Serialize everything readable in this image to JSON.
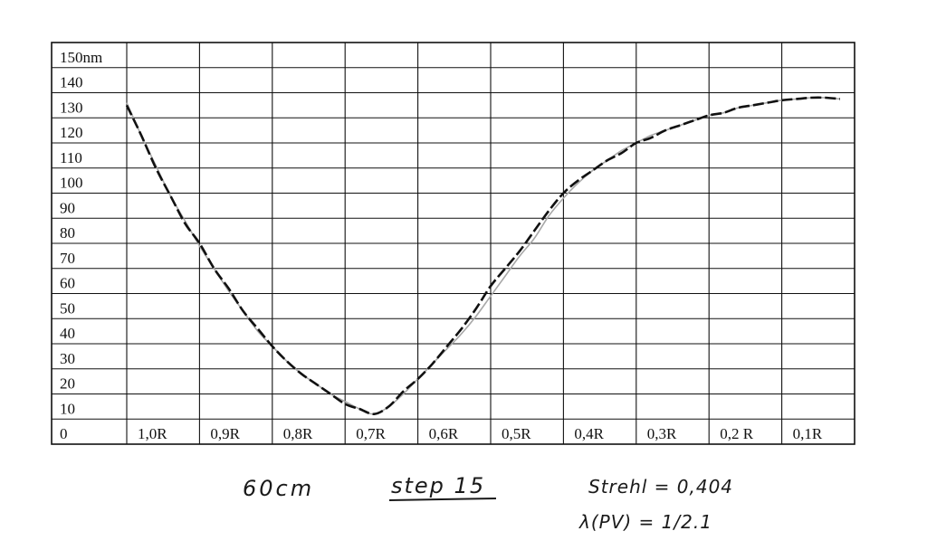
{
  "chart_data": {
    "type": "line",
    "title": "",
    "xlabel": "",
    "ylabel": "",
    "y_unit": "nm",
    "ylim": [
      0,
      150
    ],
    "yticks": [
      "150nm",
      "140",
      "130",
      "120",
      "110",
      "100",
      "90",
      "80",
      "70",
      "60",
      "50",
      "40",
      "30",
      "20",
      "10",
      "0"
    ],
    "xticks": [
      "1,0R",
      "0,9R",
      "0,8R",
      "0,7R",
      "0,6R",
      "0,5R",
      "0,4R",
      "0,3R",
      "0,2 R",
      "0,1R"
    ],
    "x_order": "descending",
    "xlim": [
      1.0,
      0.0
    ],
    "grid": true,
    "series": [
      {
        "style": "dashed",
        "color": "#111111",
        "points": [
          [
            1.0,
            125
          ],
          [
            0.98,
            113
          ],
          [
            0.96,
            100
          ],
          [
            0.94,
            89
          ],
          [
            0.92,
            78
          ],
          [
            0.9,
            70
          ],
          [
            0.88,
            60
          ],
          [
            0.86,
            52
          ],
          [
            0.84,
            43
          ],
          [
            0.82,
            36
          ],
          [
            0.8,
            29
          ],
          [
            0.78,
            23
          ],
          [
            0.76,
            18
          ],
          [
            0.74,
            14
          ],
          [
            0.72,
            10
          ],
          [
            0.7,
            6
          ],
          [
            0.68,
            4
          ],
          [
            0.66,
            2
          ],
          [
            0.64,
            5
          ],
          [
            0.62,
            11
          ],
          [
            0.6,
            16
          ],
          [
            0.58,
            22
          ],
          [
            0.56,
            29
          ],
          [
            0.54,
            36
          ],
          [
            0.52,
            44
          ],
          [
            0.5,
            53
          ],
          [
            0.48,
            60
          ],
          [
            0.46,
            67
          ],
          [
            0.44,
            75
          ],
          [
            0.42,
            83
          ],
          [
            0.4,
            90
          ],
          [
            0.38,
            95
          ],
          [
            0.36,
            99
          ],
          [
            0.34,
            103
          ],
          [
            0.32,
            106
          ],
          [
            0.3,
            110
          ],
          [
            0.28,
            112
          ],
          [
            0.26,
            115
          ],
          [
            0.24,
            117
          ],
          [
            0.22,
            119
          ],
          [
            0.2,
            121
          ],
          [
            0.18,
            122
          ],
          [
            0.16,
            124
          ],
          [
            0.14,
            125
          ],
          [
            0.12,
            126
          ],
          [
            0.1,
            127
          ],
          [
            0.08,
            127.5
          ],
          [
            0.06,
            128
          ],
          [
            0.04,
            128
          ],
          [
            0.02,
            127.5
          ]
        ]
      },
      {
        "style": "solid",
        "color": "#a8a8a8",
        "points": [
          [
            1.0,
            126
          ],
          [
            0.98,
            113
          ],
          [
            0.96,
            101
          ],
          [
            0.94,
            89
          ],
          [
            0.92,
            79
          ],
          [
            0.9,
            69
          ],
          [
            0.88,
            60
          ],
          [
            0.86,
            51
          ],
          [
            0.84,
            43
          ],
          [
            0.82,
            35
          ],
          [
            0.8,
            29
          ],
          [
            0.78,
            23
          ],
          [
            0.76,
            18
          ],
          [
            0.74,
            14
          ],
          [
            0.72,
            10
          ],
          [
            0.7,
            7
          ],
          [
            0.68,
            4
          ],
          [
            0.66,
            2
          ],
          [
            0.64,
            5
          ],
          [
            0.62,
            10
          ],
          [
            0.6,
            16
          ],
          [
            0.58,
            22
          ],
          [
            0.56,
            28
          ],
          [
            0.54,
            34
          ],
          [
            0.52,
            41
          ],
          [
            0.5,
            49
          ],
          [
            0.48,
            57
          ],
          [
            0.46,
            65
          ],
          [
            0.44,
            72
          ],
          [
            0.42,
            81
          ],
          [
            0.4,
            88
          ],
          [
            0.38,
            94
          ],
          [
            0.36,
            99
          ],
          [
            0.34,
            103
          ],
          [
            0.32,
            107
          ],
          [
            0.3,
            110
          ],
          [
            0.28,
            113
          ],
          [
            0.26,
            115
          ],
          [
            0.24,
            117
          ],
          [
            0.22,
            119
          ],
          [
            0.2,
            121
          ],
          [
            0.18,
            122
          ],
          [
            0.16,
            124
          ],
          [
            0.14,
            125
          ],
          [
            0.12,
            126
          ],
          [
            0.1,
            127
          ],
          [
            0.08,
            127.5
          ],
          [
            0.06,
            128
          ],
          [
            0.04,
            128
          ],
          [
            0.02,
            127.5
          ]
        ]
      }
    ]
  },
  "annotations": {
    "distance": "60cm",
    "step": "step 15",
    "strehl": "Strehl = 0,404",
    "pv": "λ(PV) = 1/2.1"
  }
}
